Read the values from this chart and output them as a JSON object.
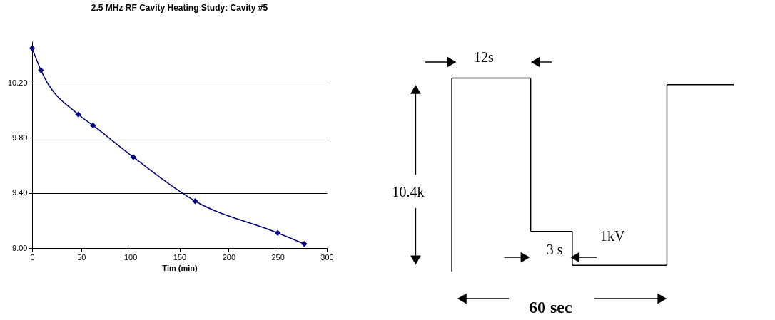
{
  "chart_data": [
    {
      "type": "line",
      "title": "2.5 MHz RF  Cavity Heating Study: Cavity #5",
      "xlabel": "Tim (min)",
      "x": [
        0,
        9,
        47,
        62,
        103,
        166,
        250,
        277
      ],
      "series": [
        {
          "color": "#000080",
          "values": [
            10.45,
            10.29,
            9.97,
            9.89,
            9.66,
            9.34,
            9.11,
            9.03
          ]
        }
      ],
      "marker": "diamond",
      "xlim": [
        0,
        300
      ],
      "xticks": [
        0,
        50,
        100,
        150,
        200,
        250,
        300
      ],
      "ylim": [
        9.0,
        10.5
      ],
      "yticks": [
        {
          "value": 9.0,
          "label": "9.00"
        },
        {
          "value": 9.4,
          "label": "9.40"
        },
        {
          "value": 9.8,
          "label": "9.80"
        },
        {
          "value": 10.2,
          "label": "10.20"
        }
      ],
      "grid": "y"
    },
    {
      "type": "other",
      "annotations": [
        "12s",
        "10.4k",
        "3 s",
        "1kV",
        "60 sec"
      ]
    }
  ]
}
